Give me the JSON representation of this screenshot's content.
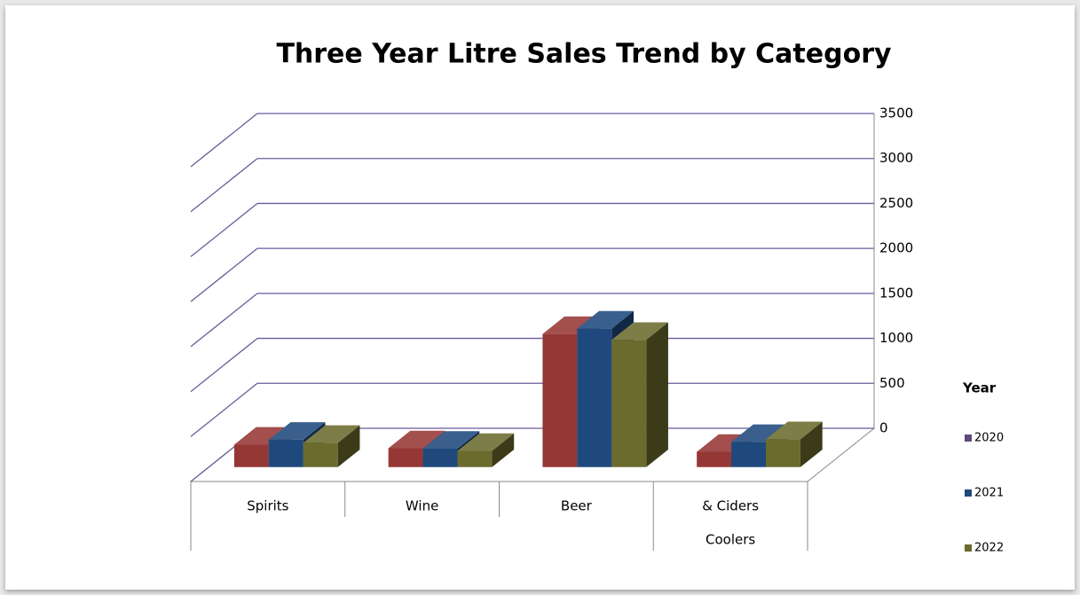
{
  "chart_data": {
    "type": "bar3d",
    "title": "Three Year Litre Sales Trend by Category",
    "categories": [
      "Spirits",
      "Wine",
      "Beer",
      [
        "& Ciders",
        "Coolers"
      ]
    ],
    "series": [
      {
        "name": "2020",
        "color": "#953735",
        "legend_color": "#60497a",
        "values": [
          250,
          210,
          1480,
          170
        ]
      },
      {
        "name": "2021",
        "color": "#1f497d",
        "legend_color": "#1f497d",
        "values": [
          305,
          205,
          1540,
          280
        ]
      },
      {
        "name": "2022",
        "color": "#6b6b2e",
        "legend_color": "#6b6b2e",
        "values": [
          270,
          180,
          1415,
          310
        ]
      }
    ],
    "ylim": [
      0,
      3500
    ],
    "yticks": [
      0,
      500,
      1000,
      1500,
      2000,
      2500,
      3000,
      3500
    ],
    "grid": true,
    "legend_title": "Year",
    "legend_position": "right"
  }
}
